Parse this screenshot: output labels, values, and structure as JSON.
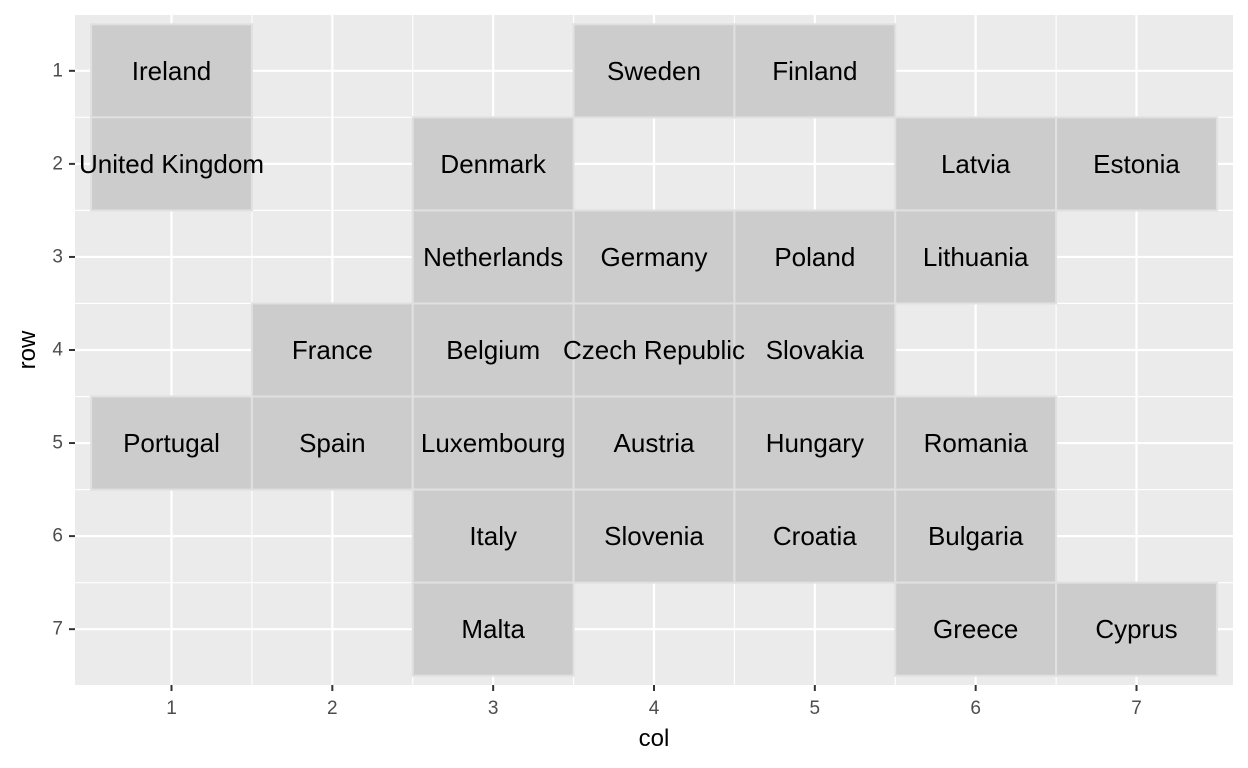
{
  "chart_data": {
    "type": "heatmap",
    "xlabel": "col",
    "ylabel": "row",
    "x_ticks": [
      "1",
      "2",
      "3",
      "4",
      "5",
      "6",
      "7"
    ],
    "y_ticks": [
      "1",
      "2",
      "3",
      "4",
      "5",
      "6",
      "7"
    ],
    "xlim": [
      0.4,
      7.6
    ],
    "ylim": [
      7.6,
      0.4
    ],
    "y_reversed": true,
    "grid": true,
    "colors": {
      "panel": "#ebebeb",
      "grid": "#ffffff",
      "tile_fill": "#cccccc",
      "tile_border": "#e0e0e0",
      "tick": "#333333"
    },
    "tiles": [
      {
        "label": "Ireland",
        "col": 1,
        "row": 1
      },
      {
        "label": "Sweden",
        "col": 4,
        "row": 1
      },
      {
        "label": "Finland",
        "col": 5,
        "row": 1
      },
      {
        "label": "United Kingdom",
        "col": 1,
        "row": 2
      },
      {
        "label": "Denmark",
        "col": 3,
        "row": 2
      },
      {
        "label": "Latvia",
        "col": 6,
        "row": 2
      },
      {
        "label": "Estonia",
        "col": 7,
        "row": 2
      },
      {
        "label": "Netherlands",
        "col": 3,
        "row": 3
      },
      {
        "label": "Germany",
        "col": 4,
        "row": 3
      },
      {
        "label": "Poland",
        "col": 5,
        "row": 3
      },
      {
        "label": "Lithuania",
        "col": 6,
        "row": 3
      },
      {
        "label": "France",
        "col": 2,
        "row": 4
      },
      {
        "label": "Belgium",
        "col": 3,
        "row": 4
      },
      {
        "label": "Czech Republic",
        "col": 4,
        "row": 4
      },
      {
        "label": "Slovakia",
        "col": 5,
        "row": 4
      },
      {
        "label": "Portugal",
        "col": 1,
        "row": 5
      },
      {
        "label": "Spain",
        "col": 2,
        "row": 5
      },
      {
        "label": "Luxembourg",
        "col": 3,
        "row": 5
      },
      {
        "label": "Austria",
        "col": 4,
        "row": 5
      },
      {
        "label": "Hungary",
        "col": 5,
        "row": 5
      },
      {
        "label": "Romania",
        "col": 6,
        "row": 5
      },
      {
        "label": "Italy",
        "col": 3,
        "row": 6
      },
      {
        "label": "Slovenia",
        "col": 4,
        "row": 6
      },
      {
        "label": "Croatia",
        "col": 5,
        "row": 6
      },
      {
        "label": "Bulgaria",
        "col": 6,
        "row": 6
      },
      {
        "label": "Malta",
        "col": 3,
        "row": 7
      },
      {
        "label": "Greece",
        "col": 6,
        "row": 7
      },
      {
        "label": "Cyprus",
        "col": 7,
        "row": 7
      }
    ]
  }
}
